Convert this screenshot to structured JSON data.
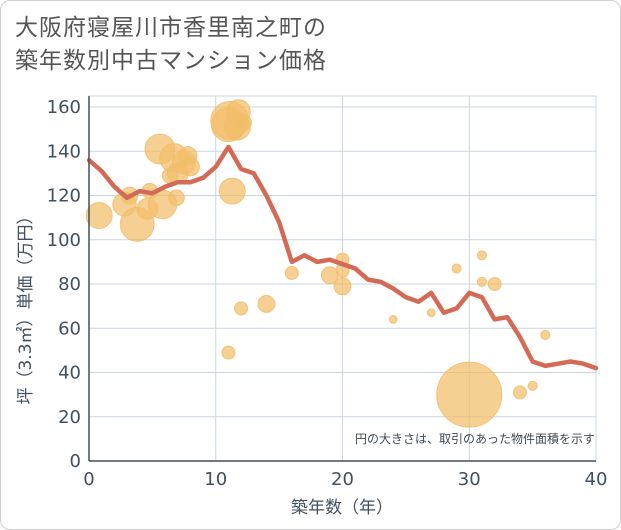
{
  "title_lines": [
    "大阪府寝屋川市香里南之町の",
    "築年数別中古マンション価格"
  ],
  "chart_data": {
    "type": "scatter",
    "xlabel": "築年数（年）",
    "ylabel": "坪（3.3㎡）単価（万円）",
    "xlim": [
      0,
      40
    ],
    "ylim": [
      0,
      165
    ],
    "xticks": [
      0,
      10,
      20,
      30,
      40
    ],
    "yticks": [
      0,
      20,
      40,
      60,
      80,
      100,
      120,
      140,
      160
    ],
    "grid": true,
    "note": "円の大きさは、取引のあった物件面積を示す",
    "colors": {
      "bubble": "#f2be6a",
      "line": "#d46a55",
      "grid": "#c9d5e0",
      "axis": "#3f5160"
    },
    "bubbles": [
      {
        "x": 0.8,
        "y": 111,
        "s": 2
      },
      {
        "x": 2.8,
        "y": 116,
        "s": 1.8
      },
      {
        "x": 3.2,
        "y": 120,
        "s": 1.3
      },
      {
        "x": 3.8,
        "y": 107,
        "s": 2.6
      },
      {
        "x": 4.6,
        "y": 114,
        "s": 1.6
      },
      {
        "x": 4.8,
        "y": 122,
        "s": 1.2
      },
      {
        "x": 5.6,
        "y": 141,
        "s": 2.3
      },
      {
        "x": 5.8,
        "y": 116,
        "s": 2.2
      },
      {
        "x": 6.4,
        "y": 129,
        "s": 1.2
      },
      {
        "x": 6.7,
        "y": 137,
        "s": 2.2
      },
      {
        "x": 6.9,
        "y": 119,
        "s": 1.2
      },
      {
        "x": 7.0,
        "y": 130,
        "s": 1.6
      },
      {
        "x": 7.5,
        "y": 135,
        "s": 1.8
      },
      {
        "x": 7.8,
        "y": 138,
        "s": 1.4
      },
      {
        "x": 8.0,
        "y": 133,
        "s": 1.4
      },
      {
        "x": 11.0,
        "y": 152,
        "s": 2.6
      },
      {
        "x": 11.1,
        "y": 154,
        "s": 2.9
      },
      {
        "x": 11.3,
        "y": 122,
        "s": 2.0
      },
      {
        "x": 11.7,
        "y": 151,
        "s": 2.0
      },
      {
        "x": 11.8,
        "y": 158,
        "s": 1.8
      },
      {
        "x": 12.2,
        "y": 153,
        "s": 1.2
      },
      {
        "x": 11.0,
        "y": 49,
        "s": 1.0
      },
      {
        "x": 12.0,
        "y": 69,
        "s": 1.0
      },
      {
        "x": 14.0,
        "y": 71,
        "s": 1.3
      },
      {
        "x": 16.0,
        "y": 85,
        "s": 1.0
      },
      {
        "x": 19.0,
        "y": 84,
        "s": 1.3
      },
      {
        "x": 20.0,
        "y": 79,
        "s": 1.3
      },
      {
        "x": 20.0,
        "y": 86,
        "s": 1.0
      },
      {
        "x": 20.0,
        "y": 91,
        "s": 1.0
      },
      {
        "x": 24.0,
        "y": 64,
        "s": 0.6
      },
      {
        "x": 27.0,
        "y": 67,
        "s": 0.6
      },
      {
        "x": 29.0,
        "y": 87,
        "s": 0.7
      },
      {
        "x": 30.0,
        "y": 30,
        "s": 5.0
      },
      {
        "x": 31.0,
        "y": 81,
        "s": 0.7
      },
      {
        "x": 31.0,
        "y": 93,
        "s": 0.7
      },
      {
        "x": 32.0,
        "y": 80,
        "s": 1.0
      },
      {
        "x": 34.0,
        "y": 31,
        "s": 1.0
      },
      {
        "x": 35.0,
        "y": 34,
        "s": 0.7
      },
      {
        "x": 36.0,
        "y": 57,
        "s": 0.7
      }
    ],
    "series": [
      {
        "x": [
          0,
          1,
          2,
          3,
          4,
          5,
          6,
          7,
          8,
          9,
          10,
          11,
          12,
          13,
          14,
          15,
          16,
          17,
          18,
          19,
          20,
          21,
          22,
          23,
          24,
          25,
          26,
          27,
          28,
          29,
          30,
          31,
          32,
          33,
          34,
          35,
          36,
          37,
          38,
          39,
          40
        ],
        "y": [
          136,
          131,
          124,
          119,
          122,
          121,
          124,
          126,
          126,
          128,
          133,
          142,
          132,
          130,
          120,
          108,
          90,
          93,
          90,
          91,
          89,
          87,
          82,
          81,
          78,
          74,
          72,
          76,
          67,
          69,
          76,
          74,
          64,
          65,
          56,
          45,
          43,
          44,
          45,
          44,
          42
        ]
      }
    ]
  }
}
